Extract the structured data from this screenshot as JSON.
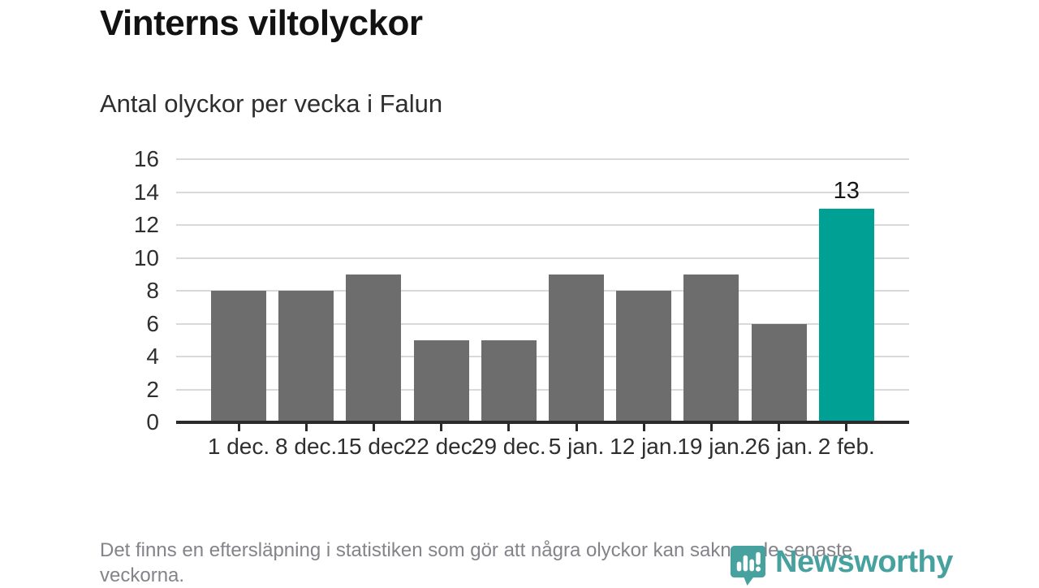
{
  "header": {
    "title": "Vinterns viltolyckor",
    "subtitle": "Antal olyckor per vecka i Falun"
  },
  "footer": {
    "note": "Det finns en eftersläpning i statistiken som gör att några olyckor kan saknas de senaste veckorna."
  },
  "logo": {
    "text": "Newsworthy",
    "color": "#47a19f",
    "icon": "newsworthy-pin-barchart-icon"
  },
  "chart_data": {
    "type": "bar",
    "title": "Vinterns viltolyckor",
    "subtitle": "Antal olyckor per vecka i Falun",
    "categories": [
      "1 dec.",
      "8 dec.",
      "15 dec.",
      "22 dec.",
      "29 dec.",
      "5 jan.",
      "12 jan.",
      "19 jan.",
      "26 jan.",
      "2 feb."
    ],
    "values": [
      8,
      8,
      9,
      5,
      5,
      9,
      8,
      9,
      6,
      13
    ],
    "ylim": [
      0,
      16
    ],
    "ytick_step": 2,
    "grid": "horizontal",
    "legend": "none",
    "bar_color": "#6e6d6e",
    "highlight_index": 9,
    "highlight_color": "#00a094",
    "axis_color": "#2b2b2b",
    "grid_color": "#d9d9d9",
    "label_color": "#2f2f2f",
    "annotations": [
      {
        "index": 9,
        "text": "13"
      }
    ]
  }
}
